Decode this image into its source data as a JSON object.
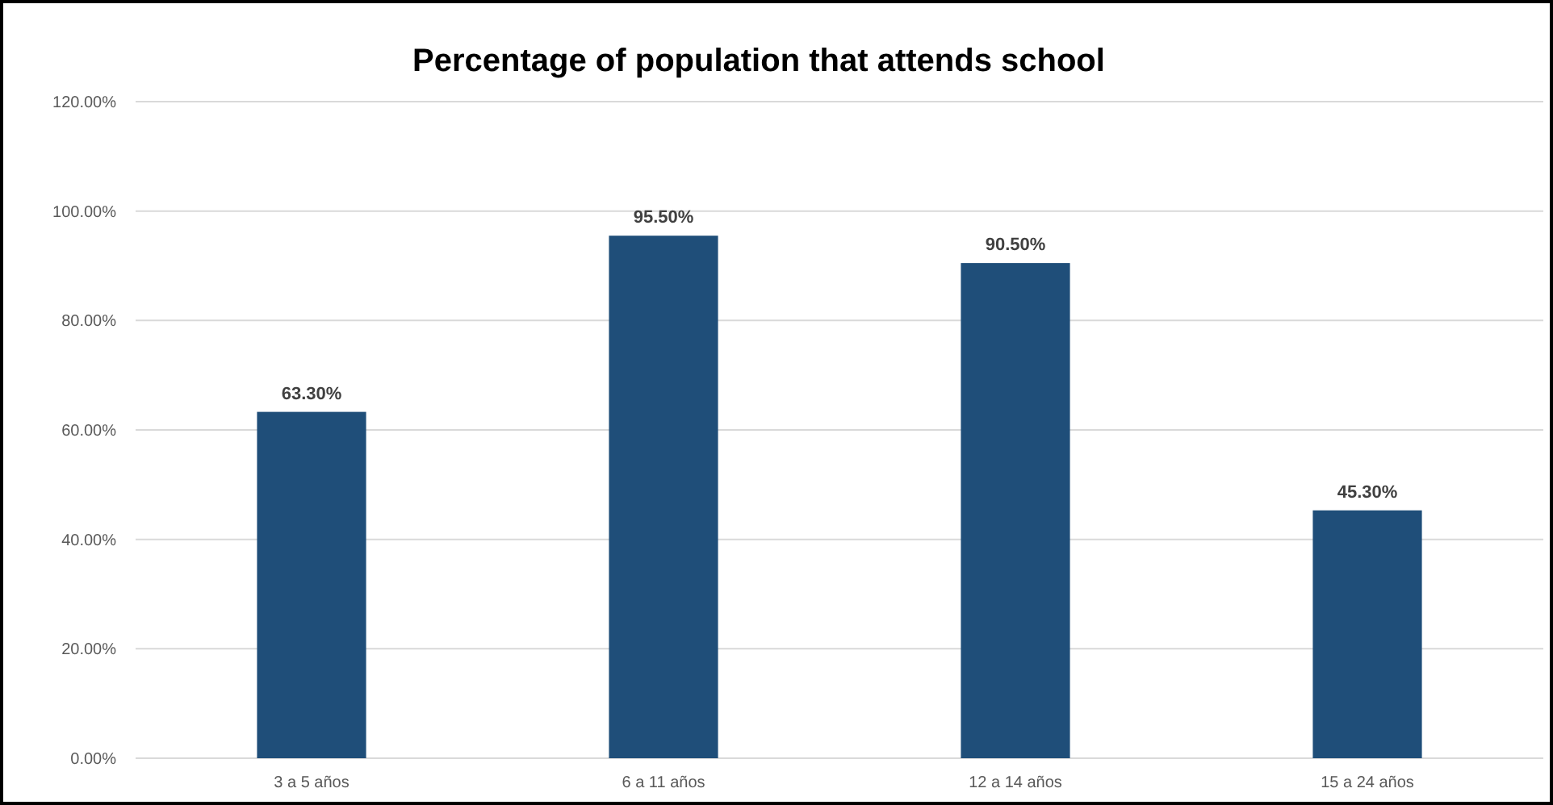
{
  "chart_data": {
    "type": "bar",
    "title": "Percentage of population that attends school",
    "categories": [
      "3 a 5 años",
      "6 a 11 años",
      "12 a 14 años",
      "15 a 24 años"
    ],
    "values": [
      63.3,
      95.5,
      90.5,
      45.3
    ],
    "value_labels": [
      "63.30%",
      "95.50%",
      "90.50%",
      "45.30%"
    ],
    "color": "#1f4e79",
    "ylim": [
      0,
      120
    ],
    "yticks": [
      {
        "value": 0,
        "label": "0.00%"
      },
      {
        "value": 20,
        "label": "20.00%"
      },
      {
        "value": 40,
        "label": "40.00%"
      },
      {
        "value": 60,
        "label": "60.00%"
      },
      {
        "value": 80,
        "label": "80.00%"
      },
      {
        "value": 100,
        "label": "100.00%"
      },
      {
        "value": 120,
        "label": "120.00%"
      }
    ],
    "grid": "y"
  }
}
